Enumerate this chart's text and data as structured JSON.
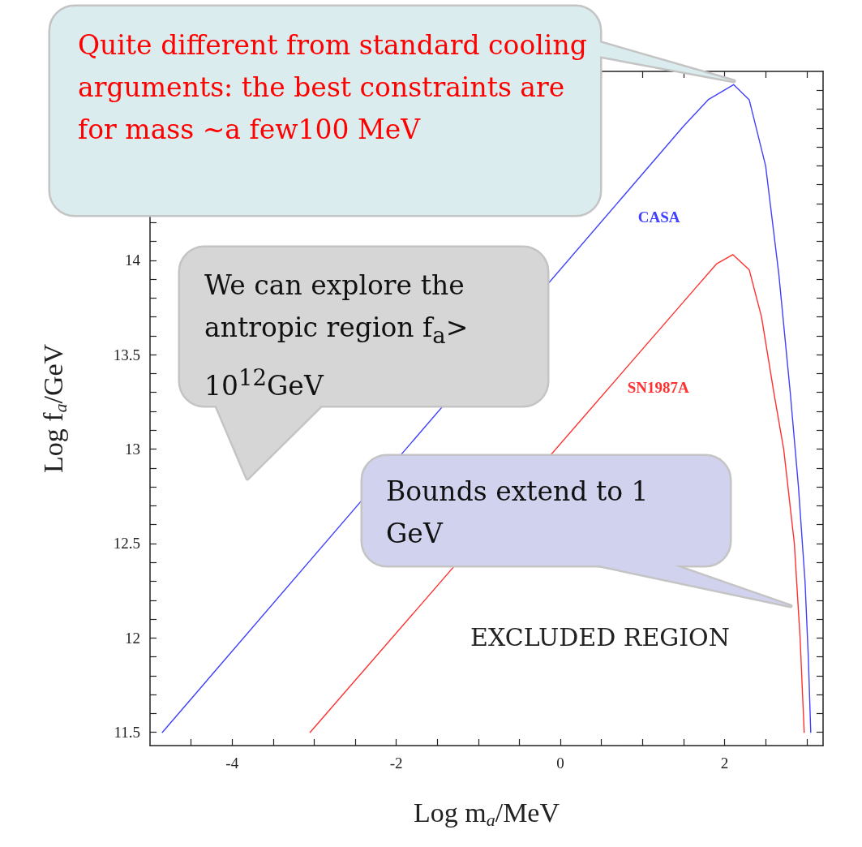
{
  "chart_data": {
    "type": "line",
    "xlabel": "Log m$_{a}$/MeV",
    "ylabel": "Log f$_{a}$/GeV",
    "xlim": [
      -5,
      3.2
    ],
    "ylim": [
      11.43,
      15
    ],
    "xticks": [
      {
        "value": -4.5,
        "label": null
      },
      -4,
      {
        "value": -3.5,
        "label": null
      },
      {
        "value": -3,
        "label": null
      },
      {
        "value": -2.5,
        "label": null
      },
      -2,
      {
        "value": -1.5,
        "label": null
      },
      {
        "value": -1,
        "label": null
      },
      {
        "value": -0.5,
        "label": null
      },
      0,
      {
        "value": 0.5,
        "label": null
      },
      {
        "value": 1,
        "label": null
      },
      {
        "value": 1.5,
        "label": null
      },
      2,
      {
        "value": 2.5,
        "label": null
      },
      {
        "value": 3,
        "label": null
      }
    ],
    "yticks": [
      11.5,
      {
        "value": 11.6,
        "label": null
      },
      {
        "value": 11.7,
        "label": null
      },
      {
        "value": 11.8,
        "label": null
      },
      {
        "value": 11.9,
        "label": null
      },
      12.0,
      {
        "value": 12.1,
        "label": null
      },
      {
        "value": 12.2,
        "label": null
      },
      {
        "value": 12.3,
        "label": null
      },
      {
        "value": 12.4,
        "label": null
      },
      12.5,
      {
        "value": 12.6,
        "label": null
      },
      {
        "value": 12.7,
        "label": null
      },
      {
        "value": 12.8,
        "label": null
      },
      {
        "value": 12.9,
        "label": null
      },
      13.0,
      {
        "value": 13.1,
        "label": null
      },
      {
        "value": 13.2,
        "label": null
      },
      {
        "value": 13.3,
        "label": null
      },
      {
        "value": 13.4,
        "label": null
      },
      13.5,
      {
        "value": 13.6,
        "label": null
      },
      {
        "value": 13.7,
        "label": null
      },
      {
        "value": 13.8,
        "label": null
      },
      {
        "value": 13.9,
        "label": null
      },
      14.0,
      {
        "value": 14.1,
        "label": null
      },
      {
        "value": 14.2,
        "label": null
      },
      {
        "value": 14.3,
        "label": null
      },
      {
        "value": 14.4,
        "label": null
      },
      {
        "value": 14.5,
        "label": null
      },
      {
        "value": 14.6,
        "label": null
      },
      {
        "value": 14.7,
        "label": null
      },
      {
        "value": 14.8,
        "label": null
      },
      {
        "value": 14.9,
        "label": null
      }
    ],
    "grid": false,
    "marker": "none",
    "line_style": "solid",
    "series": [
      {
        "name": "CASA",
        "color": "#4040ff",
        "x": [
          -4.85,
          1.5,
          1.8,
          2.11,
          2.3,
          2.5,
          2.66,
          2.8,
          2.9,
          2.98,
          3.02,
          3.05
        ],
        "values": [
          11.5,
          14.71,
          14.85,
          14.93,
          14.85,
          14.5,
          13.93,
          13.3,
          12.8,
          12.3,
          11.9,
          11.5
        ]
      },
      {
        "name": "SN1987A",
        "color": "#ff3030",
        "x": [
          -3.05,
          1.6,
          1.9,
          2.1,
          2.3,
          2.45,
          2.6,
          2.72,
          2.85,
          2.92,
          2.97
        ],
        "values": [
          11.5,
          13.83,
          13.98,
          14.03,
          13.95,
          13.7,
          13.3,
          13.0,
          12.5,
          12.0,
          11.5
        ]
      }
    ],
    "annotations": [
      "Quite different from standard cooling arguments: the best constraints are for mass ~a few100 MeV",
      "We can explore the antropic region f$_{a}$> 10$^{12}$GeV",
      "Bounds extend to 1 GeV",
      "EXCLUDED REGION"
    ]
  }
}
